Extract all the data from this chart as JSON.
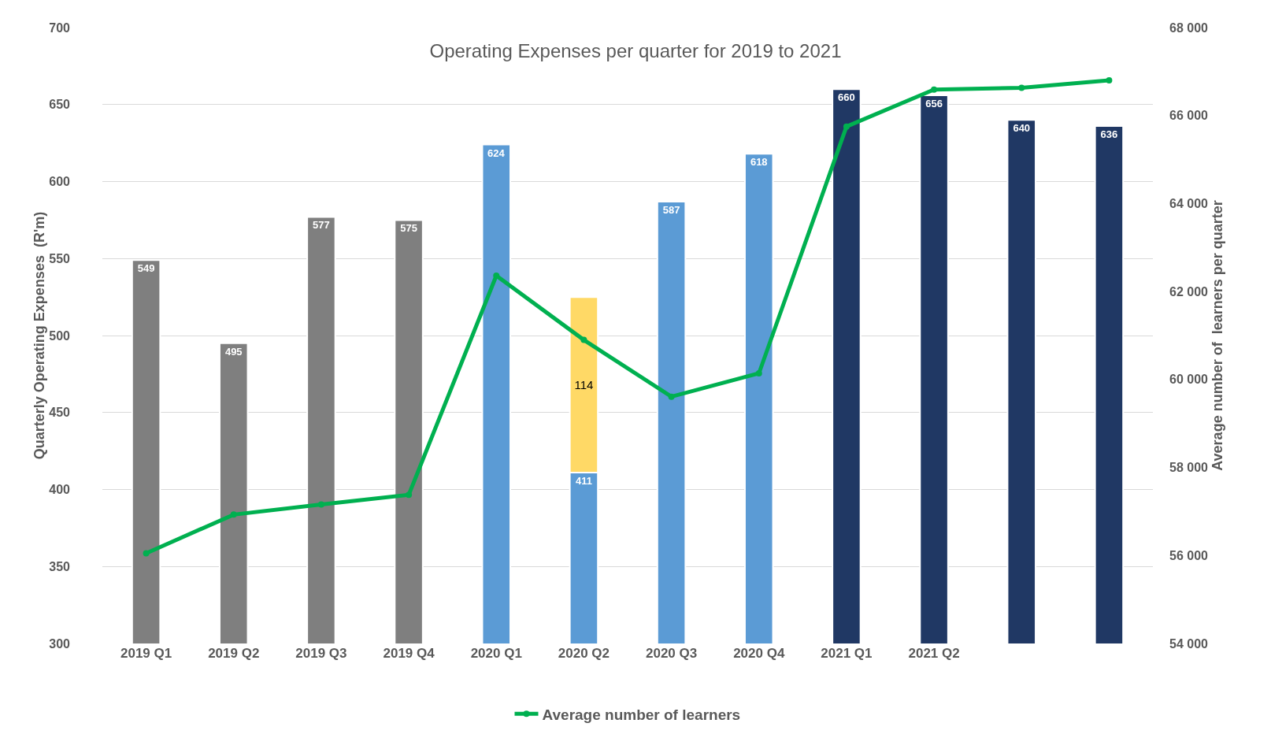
{
  "chart_data": {
    "type": "bar",
    "title": "Operating Expenses per quarter for 2019 to 2021",
    "ylabel": "Quarterly Operating Expenses  (R'm)",
    "y2label": "Average number of  learners per quarter",
    "categories": [
      "2019 Q1",
      "2019 Q2",
      "2019 Q3",
      "2019 Q4",
      "2020 Q1",
      "2020 Q2",
      "2020 Q3",
      "2020 Q4",
      "2021 Q1",
      "2021 Q2",
      null,
      null
    ],
    "grid": "y",
    "legend": "bottom",
    "ylim": [
      300,
      700
    ],
    "yticks": [
      300,
      350,
      400,
      450,
      500,
      550,
      600,
      650,
      700
    ],
    "y2lim": [
      54000,
      68000
    ],
    "y2ticks": [
      {
        "value": 54000,
        "label": "54 000"
      },
      {
        "value": 56000,
        "label": "56 000"
      },
      {
        "value": 58000,
        "label": "58 000"
      },
      {
        "value": 60000,
        "label": "60 000"
      },
      {
        "value": 62000,
        "label": "62 000"
      },
      {
        "value": 64000,
        "label": "64 000"
      },
      {
        "value": 66000,
        "label": "66 000"
      },
      {
        "value": 68000,
        "label": "68 000"
      }
    ],
    "series": [
      {
        "colors": [
          "#7f7f7f",
          "#7f7f7f",
          "#7f7f7f",
          "#7f7f7f",
          "#5b9bd5",
          "#5b9bd5",
          "#5b9bd5",
          "#5b9bd5",
          "#203864",
          "#203864",
          "#203864",
          "#203864"
        ],
        "values": [
          549,
          495,
          577,
          575,
          624,
          411,
          587,
          618,
          660,
          656,
          640,
          636
        ],
        "value_labels": [
          "549",
          "495",
          "577",
          "575",
          "624",
          "411",
          "587",
          "618",
          "660",
          "656",
          "640",
          "636"
        ]
      },
      {
        "color": "#ffd966",
        "values": [
          null,
          null,
          null,
          null,
          null,
          114,
          null,
          null,
          null,
          null,
          null,
          null
        ],
        "base": [
          null,
          null,
          null,
          null,
          null,
          411,
          null,
          null,
          null,
          null,
          null,
          null
        ],
        "value_labels": [
          null,
          null,
          null,
          null,
          null,
          "114",
          null,
          null,
          null,
          null,
          null,
          null
        ]
      },
      {
        "type": "line",
        "name": "Average number of learners",
        "color": "#00b050",
        "axis": "y2",
        "marker": "circle",
        "values": [
          56050,
          56930,
          57160,
          57380,
          62360,
          60900,
          59610,
          60140,
          65750,
          66590,
          66630,
          66800
        ]
      }
    ]
  }
}
